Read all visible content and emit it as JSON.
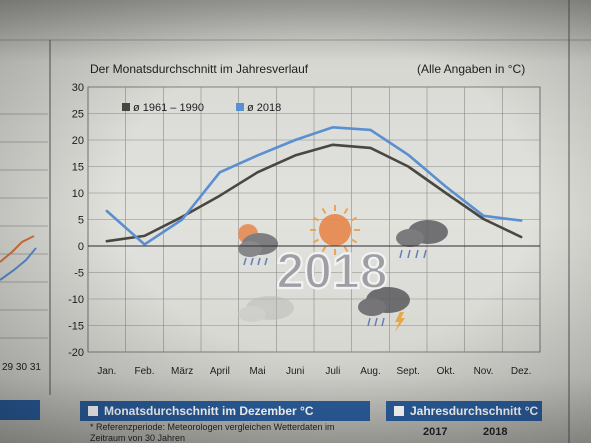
{
  "header": {
    "title": "Der Monatsdurchschnitt im Jahresverlauf",
    "unit_note": "(Alle Angaben in °C)"
  },
  "chart_data": {
    "type": "line",
    "title": "Der Monatsdurchschnitt im Jahresverlauf",
    "subtitle": "(Alle Angaben in °C)",
    "categories": [
      "Jan.",
      "Feb.",
      "März",
      "April",
      "Mai",
      "Juni",
      "Juli",
      "Aug.",
      "Sept.",
      "Okt.",
      "Nov.",
      "Dez."
    ],
    "ylim": [
      -20,
      30
    ],
    "yticks": [
      30,
      25,
      20,
      15,
      10,
      5,
      0,
      -5,
      -10,
      -15,
      -20
    ],
    "grid": true,
    "legend_position": "top-left",
    "series": [
      {
        "name": "ø 1961 – 1990",
        "color": "#4a4640",
        "values": [
          0.9,
          1.9,
          5.5,
          9.5,
          13.9,
          17.1,
          19.1,
          18.5,
          15.0,
          10.0,
          5.1,
          1.7
        ]
      },
      {
        "name": "ø 2018",
        "color": "#5a8fd0",
        "values": [
          6.6,
          0.3,
          5.0,
          13.9,
          17.1,
          20.0,
          22.4,
          21.9,
          17.2,
          11.2,
          5.7,
          4.8
        ]
      }
    ],
    "annotation": "2018"
  },
  "left_chart": {
    "tick_labels": [
      "29",
      "30",
      "31"
    ],
    "series_colors": [
      "#d9743a",
      "#5a8fd0"
    ]
  },
  "bottom": {
    "december_title": "Monatsdurchschnitt im Dezember °C",
    "december_note_1": "* Referenzperiode: Meteorologen vergleichen Wetterdaten im",
    "december_note_2": "Zeitraum von 30 Jahren",
    "yearly_title": "Jahresdurchschnitt °C",
    "year_1": "2017",
    "year_2": "2018"
  },
  "colors": {
    "accent_blue": "#2a5c9a",
    "sun": "#e8874a"
  },
  "icons": [
    "sun-cloud-rain-icon",
    "sun-icon",
    "cloud-rain-icon",
    "storm-cloud-icon",
    "cloud-icon"
  ]
}
